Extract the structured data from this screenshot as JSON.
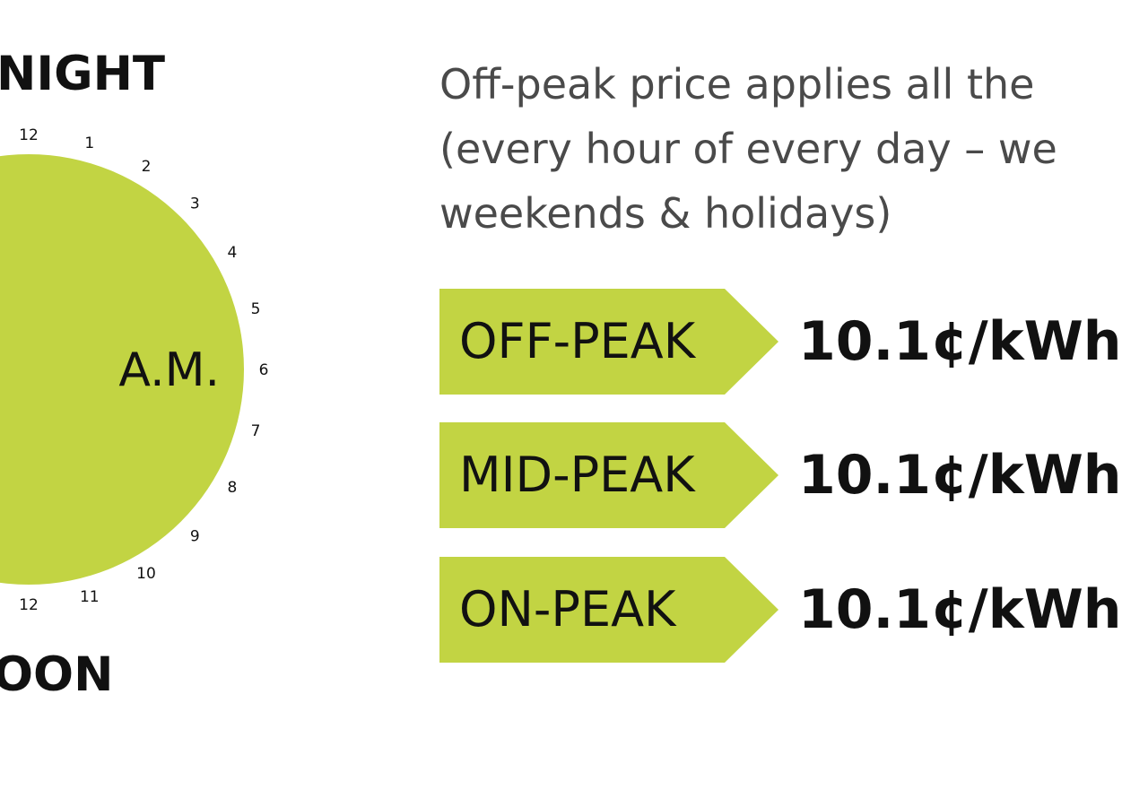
{
  "clock": {
    "top_label": "NIGHT",
    "bottom_label": "OON",
    "center_label": "A.M.",
    "fill_color": "#c2d443",
    "hour_numbers": [
      "12",
      "1",
      "2",
      "3",
      "4",
      "5",
      "6",
      "7",
      "8",
      "9",
      "10",
      "11",
      "12"
    ]
  },
  "description": {
    "lines": [
      "Off-peak price applies all the",
      "(every hour of every day –  we",
      "weekends & holidays)"
    ]
  },
  "tiers": [
    {
      "label": "OFF-PEAK",
      "price": "10.1¢/kWh"
    },
    {
      "label": "MID-PEAK",
      "price": "10.1¢/kWh"
    },
    {
      "label": "ON-PEAK",
      "price": "10.1¢/kWh"
    }
  ],
  "colors": {
    "tag_green": "#c2d443",
    "text_dark": "#111111",
    "text_gray": "#4a4a4a"
  }
}
